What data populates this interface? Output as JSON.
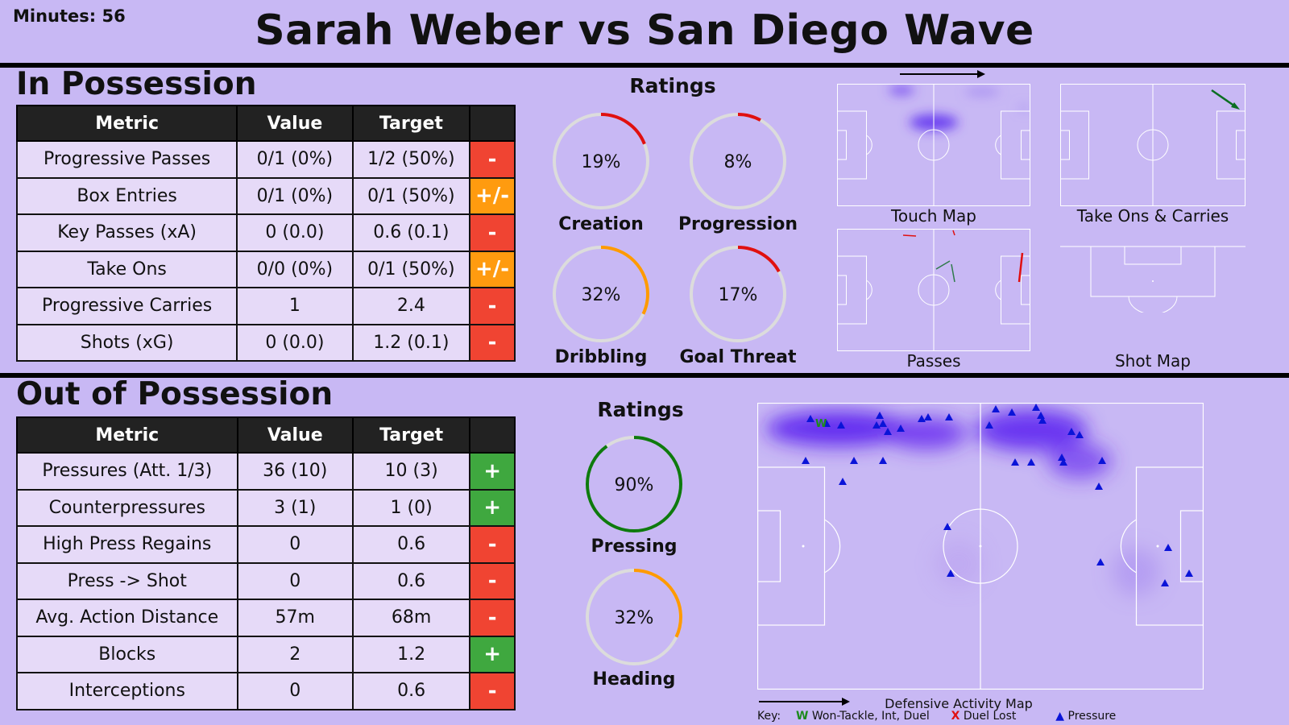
{
  "header": {
    "minutes": "Minutes: 56",
    "title": "Sarah Weber vs San Diego Wave"
  },
  "in_possession": {
    "title": "In Possession",
    "columns": [
      "Metric",
      "Value",
      "Target",
      ""
    ],
    "rows": [
      {
        "metric": "Progressive Passes",
        "value": "0/1 (0%)",
        "target": "1/2 (50%)",
        "sign": "-",
        "status": "red"
      },
      {
        "metric": "Box Entries",
        "value": "0/1 (0%)",
        "target": "0/1 (50%)",
        "sign": "+/-",
        "status": "orange"
      },
      {
        "metric": "Key Passes (xA)",
        "value": "0 (0.0)",
        "target": "0.6 (0.1)",
        "sign": "-",
        "status": "red"
      },
      {
        "metric": "Take Ons",
        "value": "0/0 (0%)",
        "target": "0/1 (50%)",
        "sign": "+/-",
        "status": "orange"
      },
      {
        "metric": "Progressive Carries",
        "value": "1",
        "target": "2.4",
        "sign": "-",
        "status": "red"
      },
      {
        "metric": "Shots (xG)",
        "value": "0 (0.0)",
        "target": "1.2 (0.1)",
        "sign": "-",
        "status": "red"
      }
    ],
    "ratings_title": "Ratings",
    "ratings": [
      {
        "label": "Creation",
        "text": "19%",
        "value": 0.19,
        "color": "#e01010"
      },
      {
        "label": "Progression",
        "text": "8%",
        "value": 0.08,
        "color": "#e01010"
      },
      {
        "label": "Dribbling",
        "text": "32%",
        "value": 0.32,
        "color": "#ff9a00"
      },
      {
        "label": "Goal Threat",
        "text": "17%",
        "value": 0.17,
        "color": "#e01010"
      }
    ],
    "maps": {
      "touch": "Touch Map",
      "takeons": "Take Ons & Carries",
      "passes": "Passes",
      "shots": "Shot Map"
    }
  },
  "out_of_possession": {
    "title": "Out of Possession",
    "columns": [
      "Metric",
      "Value",
      "Target",
      ""
    ],
    "rows": [
      {
        "metric": "Pressures (Att. 1/3)",
        "value": "36 (10)",
        "target": "10 (3)",
        "sign": "+",
        "status": "green"
      },
      {
        "metric": "Counterpressures",
        "value": "3 (1)",
        "target": "1 (0)",
        "sign": "+",
        "status": "green"
      },
      {
        "metric": "High Press Regains",
        "value": "0",
        "target": "0.6",
        "sign": "-",
        "status": "red"
      },
      {
        "metric": "Press -> Shot",
        "value": "0",
        "target": "0.6",
        "sign": "-",
        "status": "red"
      },
      {
        "metric": "Avg. Action Distance",
        "value": "57m",
        "target": "68m",
        "sign": "-",
        "status": "red"
      },
      {
        "metric": "Blocks",
        "value": "2",
        "target": "1.2",
        "sign": "+",
        "status": "green"
      },
      {
        "metric": "Interceptions",
        "value": "0",
        "target": "0.6",
        "sign": "-",
        "status": "red"
      }
    ],
    "ratings_title": "Ratings",
    "ratings": [
      {
        "label": "Pressing",
        "text": "90%",
        "value": 0.9,
        "color": "#0e7a0e"
      },
      {
        "label": "Heading",
        "text": "32%",
        "value": 0.32,
        "color": "#ff9a00"
      }
    ],
    "map_title": "Defensive Activity Map",
    "key": {
      "prefix": "Key:",
      "won_symbol": "W",
      "won": "Won-Tackle, Int, Duel",
      "lost_symbol": "X",
      "lost": "Duel Lost",
      "pressure_symbol": "▲",
      "pressure": "Pressure"
    },
    "won_marker": "W"
  }
}
